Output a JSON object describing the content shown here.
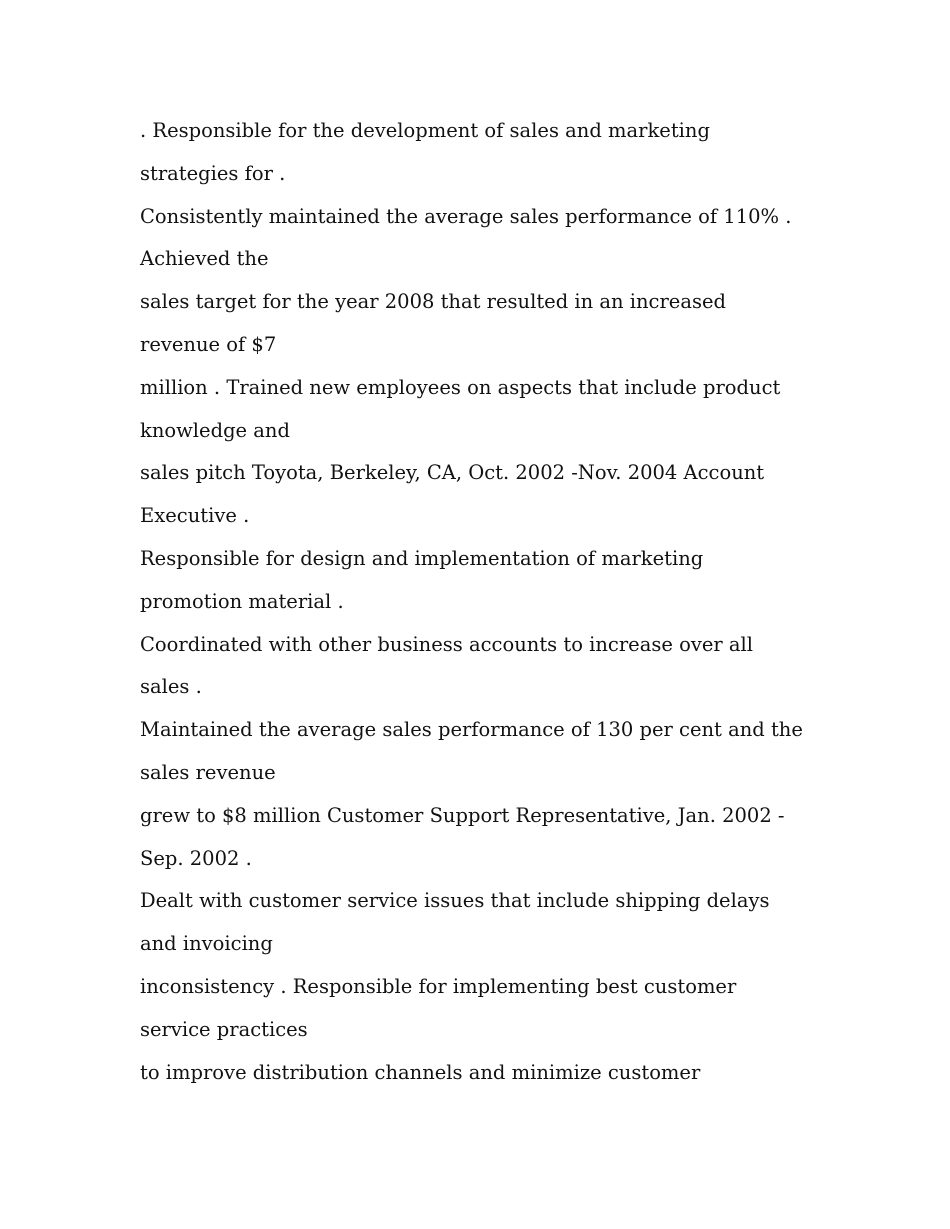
{
  "document": {
    "lines": [
      ". Responsible for the development of sales and marketing",
      "strategies for .",
      "Consistently maintained the average sales performance of 110% .",
      "Achieved the",
      "sales target for the year 2008 that resulted in an increased",
      "revenue of $7",
      "million . Trained new employees on aspects that include product",
      "knowledge and",
      "sales pitch Toyota, Berkeley, CA, Oct. 2002 -Nov. 2004 Account",
      "Executive .",
      "Responsible for design and implementation of marketing",
      "promotion material .",
      "Coordinated with other business accounts to increase over all",
      "sales .",
      "Maintained the average sales performance of 130 per cent and the",
      "sales revenue",
      "grew to $8 million Customer Support Representative, Jan. 2002 -",
      "Sep. 2002 .",
      "Dealt with customer service issues that include shipping delays",
      "and invoicing",
      "inconsistency . Responsible for implementing best customer",
      "service practices",
      "to improve distribution channels and minimize customer"
    ]
  }
}
